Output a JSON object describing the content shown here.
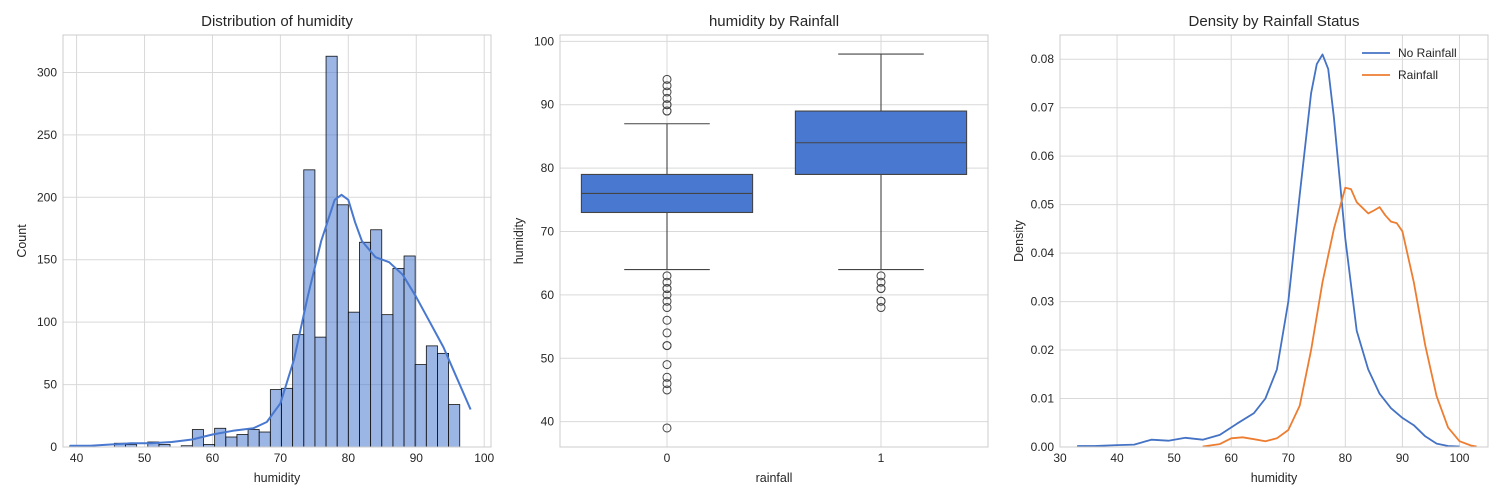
{
  "chart_data": [
    {
      "type": "histogram",
      "title": "Distribution of humidity",
      "xlabel": "humidity",
      "ylabel": "Count",
      "xlim": [
        38,
        101
      ],
      "ylim": [
        0,
        330
      ],
      "xticks": [
        40,
        50,
        60,
        70,
        80,
        90,
        100
      ],
      "yticks": [
        0,
        50,
        100,
        150,
        200,
        250,
        300
      ],
      "grid": true,
      "color": "#4878cf",
      "bins": [
        {
          "start": 39.0,
          "end": 40.64,
          "count": 1
        },
        {
          "start": 40.64,
          "end": 42.28,
          "count": 0
        },
        {
          "start": 42.28,
          "end": 43.92,
          "count": 0
        },
        {
          "start": 43.92,
          "end": 45.56,
          "count": 0
        },
        {
          "start": 45.56,
          "end": 47.2,
          "count": 3
        },
        {
          "start": 47.2,
          "end": 48.84,
          "count": 2
        },
        {
          "start": 48.84,
          "end": 50.48,
          "count": 0
        },
        {
          "start": 50.48,
          "end": 52.12,
          "count": 4
        },
        {
          "start": 52.12,
          "end": 53.76,
          "count": 2
        },
        {
          "start": 53.76,
          "end": 55.4,
          "count": 0
        },
        {
          "start": 55.4,
          "end": 57.04,
          "count": 1
        },
        {
          "start": 57.04,
          "end": 58.68,
          "count": 14
        },
        {
          "start": 58.68,
          "end": 60.32,
          "count": 2
        },
        {
          "start": 60.32,
          "end": 61.96,
          "count": 15
        },
        {
          "start": 61.96,
          "end": 63.6,
          "count": 8
        },
        {
          "start": 63.6,
          "end": 65.24,
          "count": 10
        },
        {
          "start": 65.24,
          "end": 66.88,
          "count": 14
        },
        {
          "start": 66.88,
          "end": 68.52,
          "count": 12
        },
        {
          "start": 68.52,
          "end": 70.16,
          "count": 46
        },
        {
          "start": 70.16,
          "end": 71.8,
          "count": 47
        },
        {
          "start": 71.8,
          "end": 73.44,
          "count": 90
        },
        {
          "start": 73.44,
          "end": 75.08,
          "count": 222
        },
        {
          "start": 75.08,
          "end": 76.72,
          "count": 88
        },
        {
          "start": 76.72,
          "end": 78.36,
          "count": 313
        },
        {
          "start": 78.36,
          "end": 80.0,
          "count": 194
        },
        {
          "start": 80.0,
          "end": 81.64,
          "count": 108
        },
        {
          "start": 81.64,
          "end": 83.28,
          "count": 164
        },
        {
          "start": 83.28,
          "end": 84.92,
          "count": 174
        },
        {
          "start": 84.92,
          "end": 86.56,
          "count": 106
        },
        {
          "start": 86.56,
          "end": 88.2,
          "count": 143
        },
        {
          "start": 88.2,
          "end": 89.84,
          "count": 153
        },
        {
          "start": 89.84,
          "end": 91.48,
          "count": 66
        },
        {
          "start": 91.48,
          "end": 93.12,
          "count": 81
        },
        {
          "start": 93.12,
          "end": 94.76,
          "count": 75
        },
        {
          "start": 94.76,
          "end": 96.4,
          "count": 34
        }
      ],
      "kde": {
        "x": [
          39,
          42,
          45,
          48,
          51,
          54,
          57,
          60,
          63,
          66,
          68,
          70,
          72,
          74,
          76,
          78,
          79,
          80,
          81,
          82,
          84,
          86,
          88,
          90,
          92,
          94,
          96,
          98
        ],
        "y": [
          1,
          1,
          2,
          3,
          3,
          4,
          6,
          10,
          13,
          15,
          20,
          35,
          70,
          120,
          165,
          198,
          202,
          198,
          180,
          165,
          152,
          148,
          138,
          120,
          100,
          80,
          55,
          30
        ]
      }
    },
    {
      "type": "box",
      "title": "humidity by Rainfall",
      "xlabel": "rainfall",
      "ylabel": "humidity",
      "categories": [
        "0",
        "1"
      ],
      "ylim": [
        36,
        101
      ],
      "yticks": [
        40,
        50,
        60,
        70,
        80,
        90,
        100
      ],
      "grid": true,
      "color": "#4878cf",
      "boxes": [
        {
          "category": "0",
          "whisker_low": 64,
          "q1": 73,
          "median": 76,
          "q3": 79,
          "whisker_high": 87,
          "outliers": [
            39,
            45,
            46,
            47,
            49,
            52,
            52,
            54,
            56,
            58,
            59,
            60,
            61,
            61,
            62,
            63,
            89,
            89,
            90,
            90,
            91,
            92,
            93,
            94
          ]
        },
        {
          "category": "1",
          "whisker_low": 64,
          "q1": 79,
          "median": 84,
          "q3": 89,
          "whisker_high": 98,
          "outliers": [
            58,
            59,
            59,
            61,
            61,
            62,
            63
          ]
        }
      ]
    },
    {
      "type": "line",
      "title": "Density by Rainfall Status",
      "xlabel": "humidity",
      "ylabel": "Density",
      "xlim": [
        30,
        105
      ],
      "ylim": [
        0,
        0.085
      ],
      "xticks": [
        30,
        40,
        50,
        60,
        70,
        80,
        90,
        100
      ],
      "yticks": [
        0,
        0.01,
        0.02,
        0.03,
        0.04,
        0.05,
        0.06,
        0.07,
        0.08
      ],
      "ytick_labels": [
        "0.00",
        "0.01",
        "0.02",
        "0.03",
        "0.04",
        "0.05",
        "0.06",
        "0.07",
        "0.08"
      ],
      "grid": true,
      "legend_position": "top-right",
      "series": [
        {
          "name": "No Rainfall",
          "color": "#4472c4",
          "x": [
            33,
            36,
            40,
            43,
            46,
            49,
            52,
            55,
            58,
            61,
            64,
            66,
            68,
            70,
            72,
            74,
            75,
            76,
            77,
            78,
            80,
            82,
            84,
            86,
            88,
            90,
            92,
            94,
            96,
            98,
            100
          ],
          "y": [
            0.0002,
            0.0002,
            0.0004,
            0.0005,
            0.0015,
            0.0013,
            0.0019,
            0.0015,
            0.0025,
            0.0048,
            0.007,
            0.01,
            0.016,
            0.03,
            0.052,
            0.073,
            0.079,
            0.081,
            0.078,
            0.068,
            0.043,
            0.024,
            0.016,
            0.011,
            0.008,
            0.006,
            0.0045,
            0.0022,
            0.0007,
            0.0002,
            0.0001
          ]
        },
        {
          "name": "Rainfall",
          "color": "#ed7d31",
          "x": [
            55,
            58,
            60,
            62,
            64,
            66,
            68,
            70,
            72,
            74,
            76,
            78,
            80,
            81,
            82,
            84,
            85,
            86,
            87,
            88,
            89,
            90,
            92,
            94,
            96,
            98,
            100,
            102,
            103
          ],
          "y": [
            0.0001,
            0.0006,
            0.0018,
            0.002,
            0.0016,
            0.0012,
            0.0018,
            0.0035,
            0.0085,
            0.02,
            0.034,
            0.045,
            0.0535,
            0.0532,
            0.0505,
            0.0482,
            0.0488,
            0.0495,
            0.0478,
            0.0465,
            0.0462,
            0.0445,
            0.034,
            0.021,
            0.0105,
            0.004,
            0.0012,
            0.0003,
            0.0001
          ]
        }
      ]
    }
  ]
}
